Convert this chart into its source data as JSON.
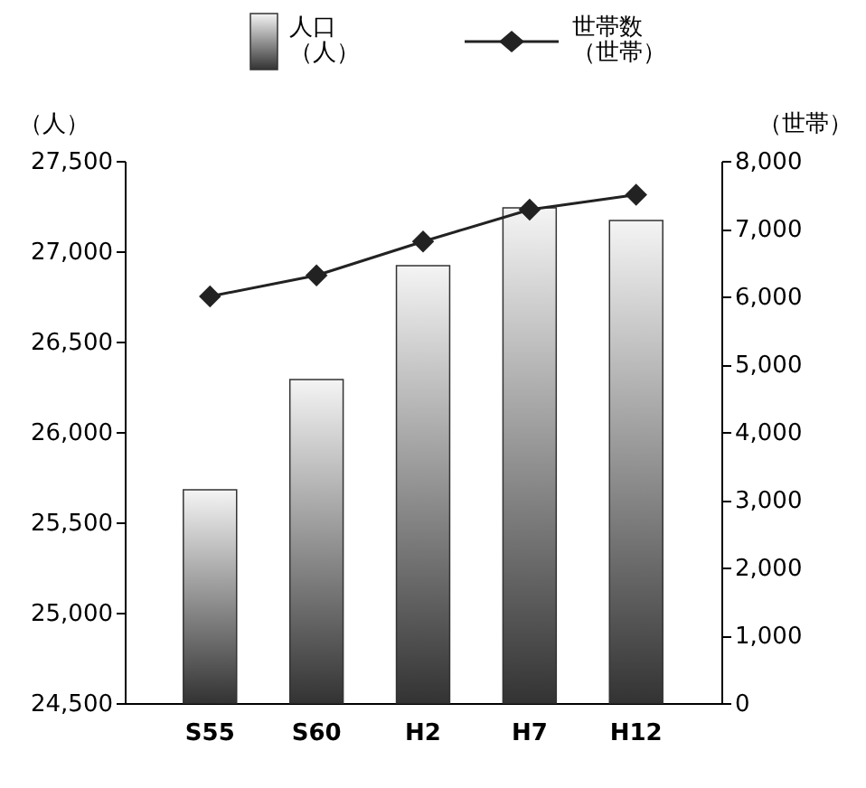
{
  "chart_data": {
    "type": "bar",
    "ylabel": "（人）",
    "y2label": "（世帯）",
    "categories": [
      "S55",
      "S60",
      "H2",
      "H7",
      "H12"
    ],
    "series": [
      {
        "name": "人口（人）",
        "color": "#333333",
        "values": [
          25680,
          26290,
          26920,
          27240,
          27170
        ]
      },
      {
        "name": "世帯数（世帯）",
        "type": "line",
        "axis": "y2",
        "color": "#222222",
        "values": [
          6000,
          6310,
          6810,
          7280,
          7500
        ]
      }
    ],
    "ylim": [
      24500,
      27500
    ],
    "yticks": [
      {
        "value": 24500,
        "label": "24,500"
      },
      {
        "value": 25000,
        "label": "25,000"
      },
      {
        "value": 25500,
        "label": "25,500"
      },
      {
        "value": 26000,
        "label": "26,000"
      },
      {
        "value": 26500,
        "label": "26,500"
      },
      {
        "value": 27000,
        "label": "27,000"
      },
      {
        "value": 27500,
        "label": "27,500"
      }
    ],
    "y2lim": [
      0,
      8000
    ],
    "y2ticks": [
      0,
      {
        "value": 1000,
        "label": "1,000"
      },
      {
        "value": 2000,
        "label": "2,000"
      },
      {
        "value": 3000,
        "label": "3,000"
      },
      {
        "value": 4000,
        "label": "4,000"
      },
      {
        "value": 5000,
        "label": "5,000"
      },
      {
        "value": 6000,
        "label": "6,000"
      },
      {
        "value": 7000,
        "label": "7,000"
      },
      {
        "value": 8000,
        "label": "8,000"
      }
    ],
    "grid": false,
    "legend": "top",
    "marker": "diamond",
    "line_style": "solid"
  }
}
